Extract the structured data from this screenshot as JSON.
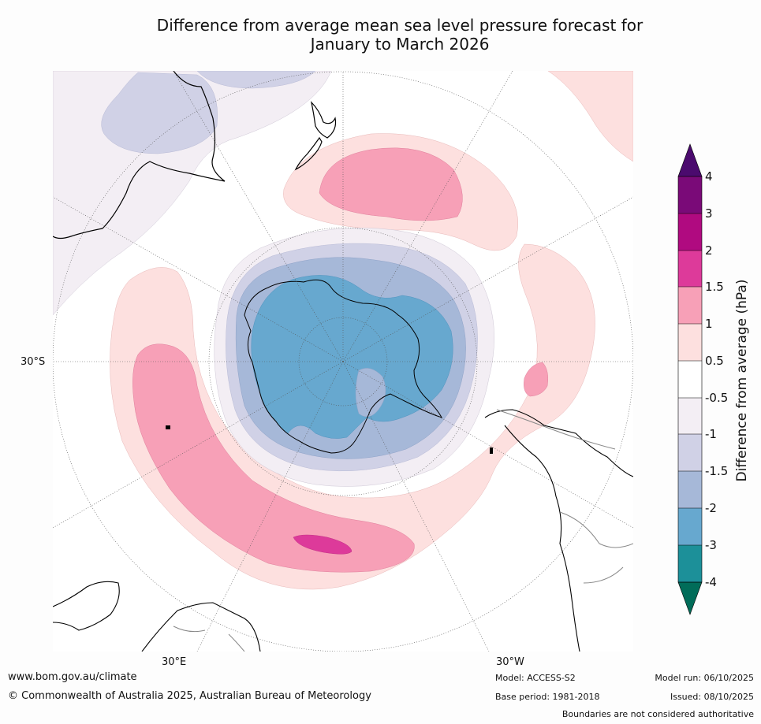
{
  "title": {
    "line1": "Difference from average mean sea level pressure forecast for",
    "line2": "January to March 2026"
  },
  "map_labels": {
    "lat_30s": "30°S",
    "lon_30e": "30°E",
    "lon_30w": "30°W"
  },
  "colorbar": {
    "title": "Difference from average (hPa)",
    "levels": [
      "4",
      "3",
      "2",
      "1.5",
      "1",
      "0.5",
      "-0.5",
      "-1",
      "-1.5",
      "-2",
      "-3",
      "-4"
    ],
    "colors": {
      "gt4": "#4b0a6e",
      "3_4": "#7a0a78",
      "2_3": "#b00a80",
      "1.5_2": "#dd3a9a",
      "1_1.5": "#f7a0b7",
      "0.5_1": "#fde0df",
      "-0.5_0.5": "#ffffff",
      "-1_-0.5": "#f3eef4",
      "-1.5_-1": "#d0d1e6",
      "-2_-1.5": "#a6b8d8",
      "-3_-2": "#67a8cf",
      "-4_-3": "#1c9099",
      "lt-4": "#016c59"
    }
  },
  "footer": {
    "website": "www.bom.gov.au/climate",
    "copyright": "© Commonwealth of Australia 2025, Australian Bureau of Meteorology",
    "model": "Model: ACCESS-S2",
    "base_period": "Base period: 1981-2018",
    "model_run": "Model run: 06/10/2025",
    "issued": "Issued: 08/10/2025",
    "disclaimer": "Boundaries are not considered authoritative"
  }
}
